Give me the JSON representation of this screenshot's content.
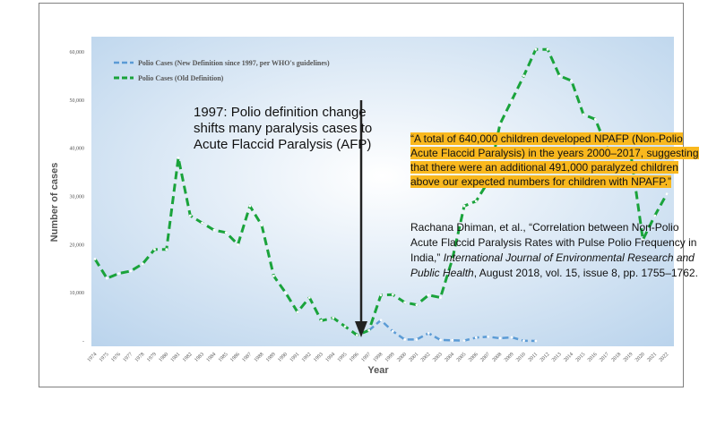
{
  "chart_data": {
    "type": "line",
    "xlabel": "Year",
    "ylabel": "Number of cases",
    "ylim": [
      0,
      65000
    ],
    "y_ticks": [
      "-",
      "10,000",
      "20,000",
      "30,000",
      "40,000",
      "50,000",
      "60,000"
    ],
    "y_tick_values": [
      0,
      10000,
      20000,
      30000,
      40000,
      50000,
      60000
    ],
    "x_ticks": [
      "1974",
      "1975",
      "1976",
      "1977",
      "1978",
      "1979",
      "1980",
      "1981",
      "1982",
      "1983",
      "1984",
      "1985",
      "1986",
      "1987",
      "1988",
      "1989",
      "1990",
      "1991",
      "1992",
      "1993",
      "1994",
      "1995",
      "1996",
      "1997",
      "1998",
      "1999",
      "2000",
      "2001",
      "2002",
      "2003",
      "2004",
      "2005",
      "2006",
      "2007",
      "2008",
      "2009",
      "2010",
      "2011",
      "2012",
      "2013",
      "2014",
      "2015",
      "2016",
      "2017",
      "2018",
      "2019",
      "2020",
      "2021",
      "2022"
    ],
    "legend_position": "top-left",
    "series": [
      {
        "name": "Polio Cases (New Definition since 1997, per WHO's guidelines)",
        "color": "#5b9bd5",
        "style": "dashed",
        "x": [
          1997,
          1998,
          1999,
          2000,
          2001,
          2002,
          2003,
          2004,
          2005,
          2006,
          2007,
          2008,
          2009,
          2010,
          2011
        ],
        "values": [
          2200,
          4300,
          2000,
          300,
          300,
          1600,
          200,
          130,
          70,
          680,
          870,
          560,
          740,
          42,
          1
        ]
      },
      {
        "name": "Polio Cases (Old Definition)",
        "color": "#1aa33b",
        "style": "dashed",
        "x": [
          1974,
          1975,
          1976,
          1977,
          1978,
          1979,
          1980,
          1981,
          1982,
          1983,
          1984,
          1985,
          1986,
          1987,
          1988,
          1989,
          1990,
          1991,
          1992,
          1993,
          1994,
          1995,
          1996,
          1997,
          1998,
          1999,
          2000,
          2001,
          2002,
          2003,
          2004,
          2005,
          2006,
          2007,
          2008,
          2009,
          2010,
          2011,
          2012,
          2013,
          2014,
          2015,
          2016,
          2017,
          2018,
          2019,
          2020,
          2021,
          2022
        ],
        "values": [
          17000,
          13000,
          14000,
          14500,
          16000,
          19000,
          19000,
          38000,
          26000,
          24500,
          23000,
          22500,
          20000,
          28000,
          24000,
          13500,
          10000,
          6000,
          9000,
          4200,
          4800,
          3000,
          1200,
          2200,
          9500,
          9600,
          8000,
          7500,
          9500,
          9000,
          17000,
          28000,
          29000,
          33000,
          45000,
          50000,
          55000,
          60500,
          60500,
          55000,
          54000,
          47000,
          46000,
          40000,
          39000,
          38500,
          21000,
          26000,
          30500
        ]
      }
    ]
  },
  "annotations": {
    "change_1997": "1997: Polio definition change shifts many paralysis cases to Acute Flaccid Paralysis (AFP)",
    "quote": "“A total of 640,000 children developed NPAFP (Non-Polio Acute Flaccid Paralysis) in the years 2000–2017, suggesting that there were an additional 491,000 paralyzed children above our expected numbers for children with NPAFP.”",
    "citation_main": "Rachana Dhiman, et al., “Correlation between Non-Polio Acute Flaccid Paralysis Rates with Pulse Polio Frequency in India,” ",
    "citation_journal": "International Journal of Environmental Research and Public Health",
    "citation_rest": ", August 2018, vol. 15, issue 8, pp. 1755–1762."
  },
  "colors": {
    "plot_bg_center": "#ffffff",
    "plot_bg_edge": "#b9d3ec",
    "highlight": "#f9b81e",
    "arrow": "#222222"
  }
}
